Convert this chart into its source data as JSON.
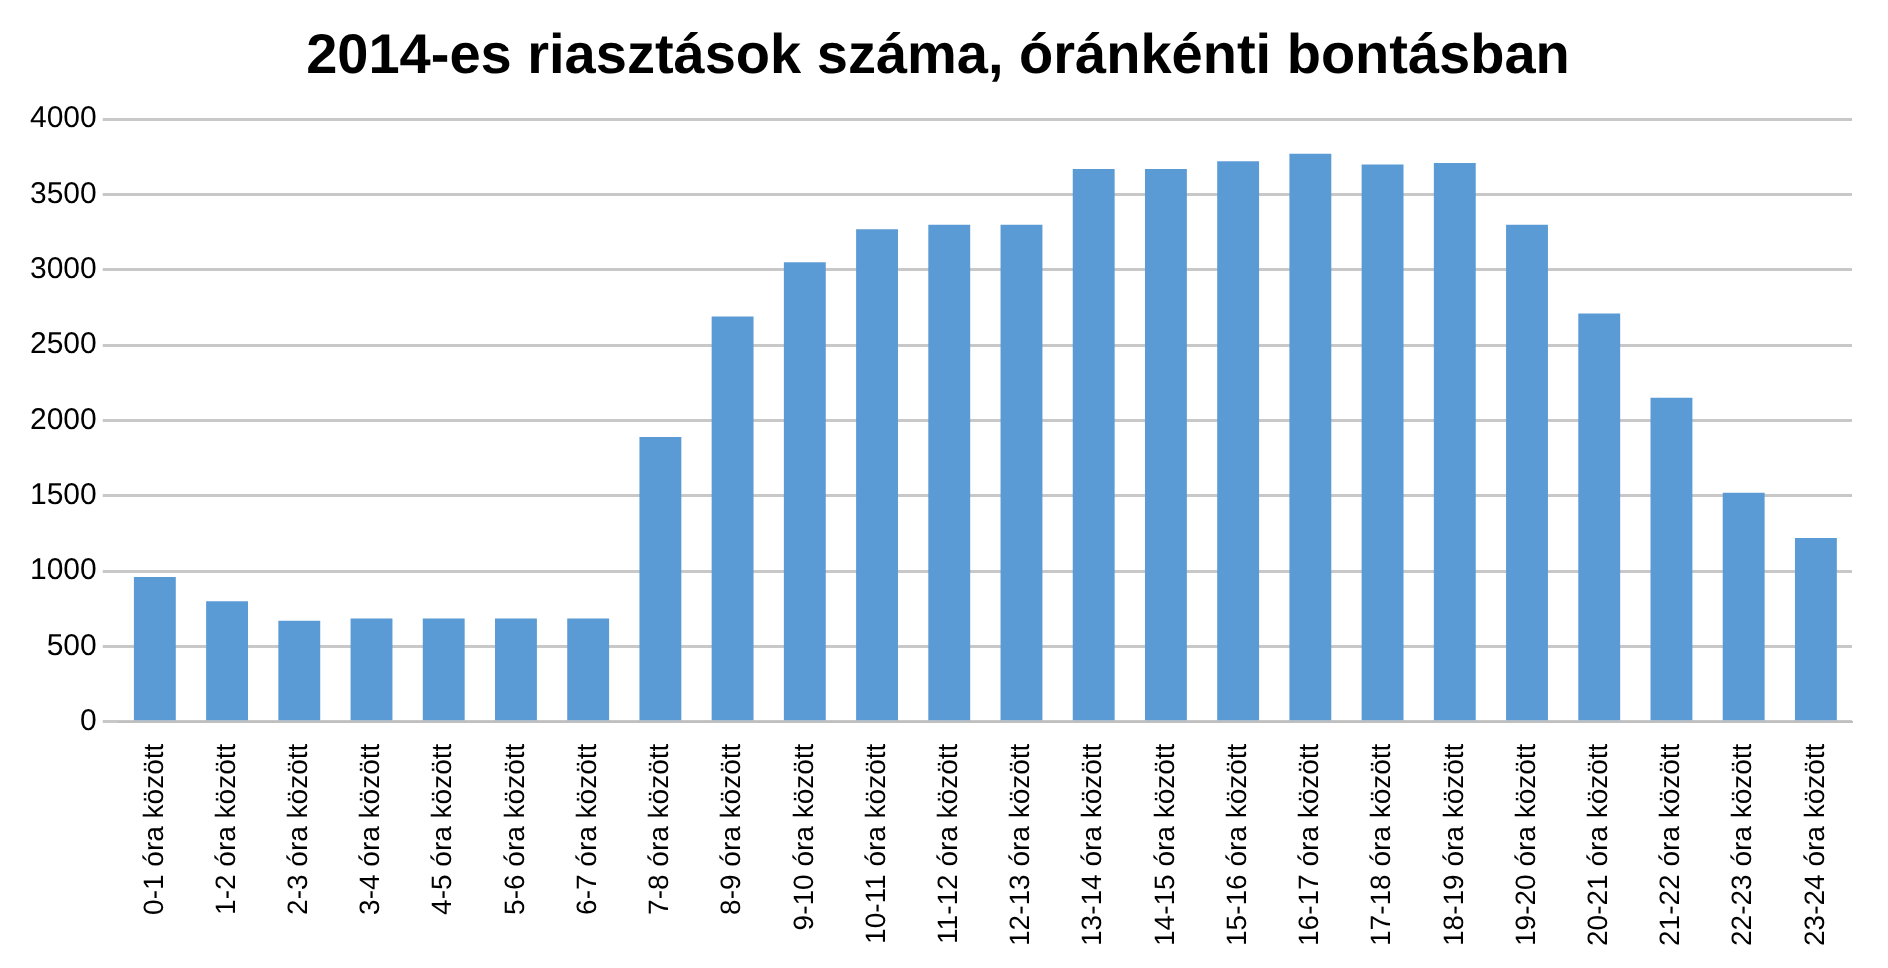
{
  "chart_data": {
    "type": "bar",
    "title": "2014-es riasztások száma, óránkénti bontásban",
    "categories": [
      "0-1 óra között",
      "1-2 óra között",
      "2-3 óra között",
      "3-4 óra között",
      "4-5 óra között",
      "5-6 óra között",
      "6-7 óra között",
      "7-8 óra között",
      "8-9 óra között",
      "9-10 óra között",
      "10-11 óra között",
      "11-12 óra között",
      "12-13 óra között",
      "13-14 óra között",
      "14-15 óra között",
      "15-16 óra között",
      "16-17 óra között",
      "17-18 óra között",
      "18-19 óra között",
      "19-20 óra között",
      "20-21 óra között",
      "21-22 óra között",
      "22-23 óra között",
      "23-24 óra között"
    ],
    "values": [
      960,
      800,
      670,
      685,
      685,
      685,
      685,
      1890,
      2690,
      3050,
      3270,
      3300,
      3300,
      3670,
      3670,
      3720,
      3770,
      3700,
      3710,
      3300,
      2710,
      2150,
      1520,
      1220
    ],
    "color": "#5b9bd5",
    "ylim": [
      0,
      4000
    ],
    "yticks": [
      0,
      500,
      1000,
      1500,
      2000,
      2500,
      3000,
      3500,
      4000
    ],
    "grid": "y"
  }
}
